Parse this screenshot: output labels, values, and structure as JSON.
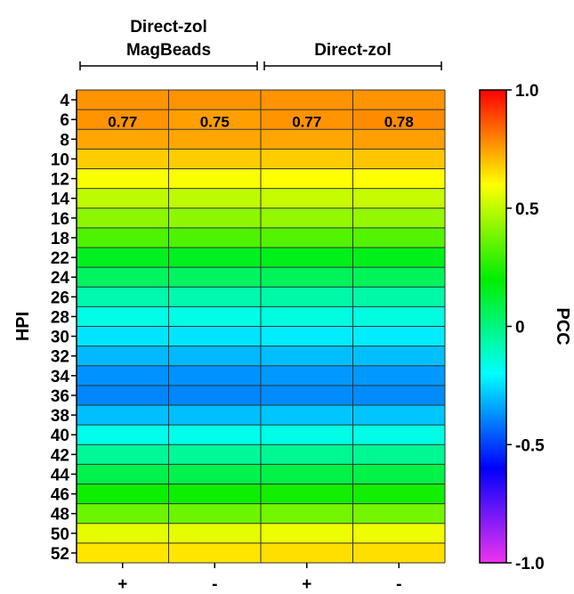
{
  "chart_data": {
    "type": "heatmap",
    "group_labels": [
      {
        "lines": [
          "Direct-zol",
          "MagBeads"
        ]
      },
      {
        "lines": [
          "Direct-zol"
        ]
      }
    ],
    "columns": [
      "+",
      "-",
      "+",
      "-"
    ],
    "column_group": [
      0,
      0,
      1,
      1
    ],
    "rows": [
      "4",
      "6",
      "8",
      "10",
      "12",
      "14",
      "16",
      "18",
      "22",
      "24",
      "26",
      "28",
      "30",
      "32",
      "34",
      "36",
      "38",
      "40",
      "42",
      "44",
      "46",
      "48",
      "50",
      "52"
    ],
    "ylabel": "HPI",
    "values": [
      [
        0.77,
        0.77,
        0.77,
        0.77
      ],
      [
        0.77,
        0.75,
        0.77,
        0.78
      ],
      [
        0.74,
        0.74,
        0.74,
        0.75
      ],
      [
        0.68,
        0.68,
        0.68,
        0.69
      ],
      [
        0.59,
        0.59,
        0.6,
        0.6
      ],
      [
        0.5,
        0.5,
        0.51,
        0.51
      ],
      [
        0.42,
        0.42,
        0.43,
        0.43
      ],
      [
        0.32,
        0.32,
        0.33,
        0.33
      ],
      [
        0.15,
        0.15,
        0.16,
        0.16
      ],
      [
        0.05,
        0.05,
        0.06,
        0.06
      ],
      [
        -0.07,
        -0.07,
        -0.06,
        -0.06
      ],
      [
        -0.16,
        -0.16,
        -0.15,
        -0.15
      ],
      [
        -0.24,
        -0.24,
        -0.23,
        -0.23
      ],
      [
        -0.31,
        -0.31,
        -0.3,
        -0.3
      ],
      [
        -0.37,
        -0.37,
        -0.36,
        -0.36
      ],
      [
        -0.39,
        -0.39,
        -0.38,
        -0.38
      ],
      [
        -0.3,
        -0.3,
        -0.29,
        -0.29
      ],
      [
        -0.17,
        -0.17,
        -0.16,
        -0.16
      ],
      [
        -0.04,
        -0.04,
        -0.03,
        -0.03
      ],
      [
        0.08,
        0.08,
        0.09,
        0.09
      ],
      [
        0.22,
        0.22,
        0.23,
        0.23
      ],
      [
        0.37,
        0.37,
        0.38,
        0.38
      ],
      [
        0.56,
        0.56,
        0.57,
        0.57
      ],
      [
        0.64,
        0.64,
        0.65,
        0.65
      ]
    ],
    "annotations": [
      {
        "row": 1,
        "col": 0,
        "text": "0.77"
      },
      {
        "row": 1,
        "col": 1,
        "text": "0.75"
      },
      {
        "row": 1,
        "col": 2,
        "text": "0.77"
      },
      {
        "row": 1,
        "col": 3,
        "text": "0.78"
      }
    ],
    "colorbar": {
      "label": "PCC",
      "range": [
        -1.0,
        1.0
      ],
      "ticks": [
        {
          "value": 1.0,
          "label": "1.0"
        },
        {
          "value": 0.5,
          "label": "0.5"
        },
        {
          "value": 0,
          "label": "0"
        },
        {
          "value": -0.5,
          "label": "-0.5"
        },
        {
          "value": -1.0,
          "label": "-1.0"
        }
      ],
      "colors": [
        "#ee33ee",
        "#0000ff",
        "#00ffff",
        "#00ee00",
        "#ffff00",
        "#ff0000"
      ]
    }
  }
}
